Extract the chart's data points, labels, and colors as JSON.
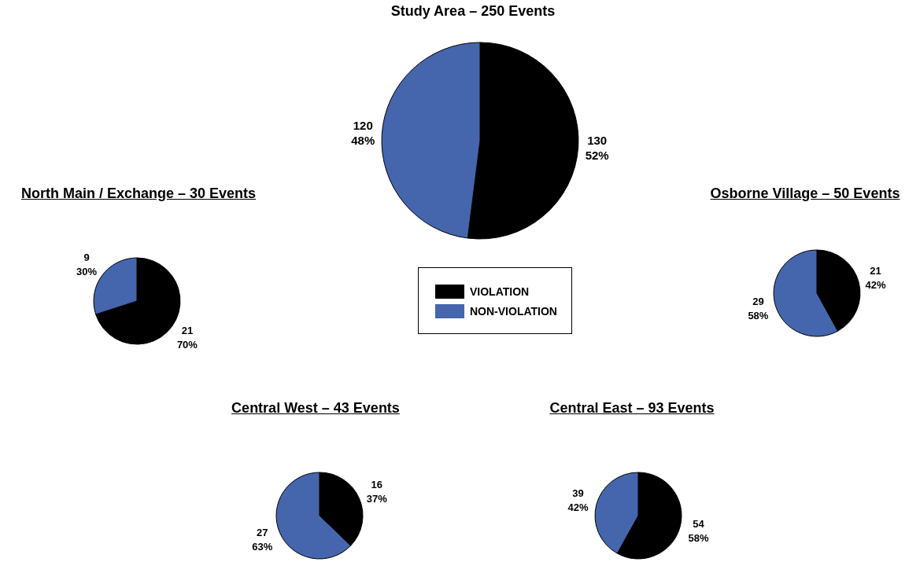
{
  "chart_data": [
    {
      "type": "pie",
      "title": "Study Area – 250 Events",
      "categories": [
        "VIOLATION",
        "NON-VIOLATION"
      ],
      "values": [
        130,
        120
      ],
      "colors": [
        "#000000",
        "#4565ad"
      ],
      "value_labels": [
        "130\n52%",
        "120\n48%"
      ],
      "legend": "bottom"
    },
    {
      "type": "pie",
      "title": "North Main / Exchange – 30 Events",
      "categories": [
        null,
        null
      ],
      "values": [
        21,
        9
      ],
      "colors": [
        "#000000",
        "#4565ad"
      ],
      "value_labels": [
        "21\n70%",
        "9\n30%"
      ]
    },
    {
      "type": "pie",
      "title": "Osborne Village – 50 Events",
      "categories": [
        null,
        null
      ],
      "values": [
        21,
        29
      ],
      "colors": [
        "#000000",
        "#4565ad"
      ],
      "value_labels": [
        "21\n42%",
        "29\n58%"
      ]
    },
    {
      "type": "pie",
      "title": "Central West – 43 Events",
      "categories": [
        null,
        null
      ],
      "values": [
        16,
        27
      ],
      "colors": [
        "#000000",
        "#4565ad"
      ],
      "value_labels": [
        "16\n37%",
        "27\n63%"
      ]
    },
    {
      "type": "pie",
      "title": "Central East – 93 Events",
      "categories": [
        null,
        null
      ],
      "values": [
        54,
        39
      ],
      "colors": [
        "#000000",
        "#4565ad"
      ],
      "value_labels": [
        "54\n58%",
        "39\n42%"
      ]
    }
  ]
}
